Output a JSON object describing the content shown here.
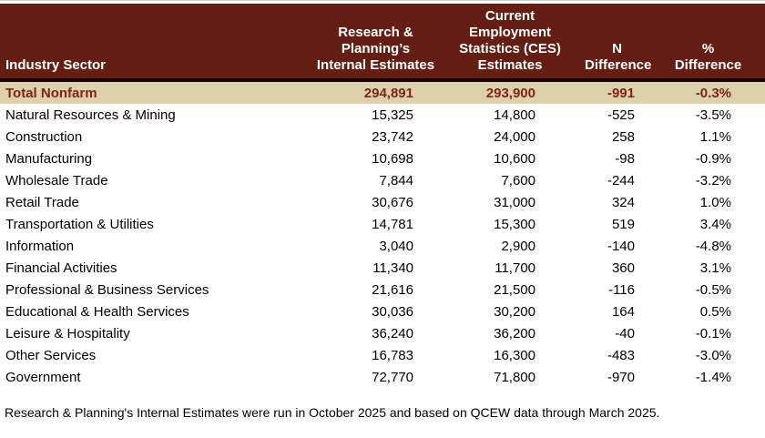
{
  "chart_data": {
    "type": "table",
    "columns": [
      "Industry Sector",
      "Research &\nPlanning’s\nInternal Estimates",
      "Current\nEmployment\nStatistics (CES)\nEstimates",
      "N\nDifference",
      "%\nDifference"
    ],
    "total_row": {
      "sector": "Total Nonfarm",
      "rp_estimate": "294,891",
      "ces_estimate": "293,900",
      "n_difference": "-991",
      "pct_difference": "-0.3%"
    },
    "rows": [
      {
        "sector": "Natural Resources & Mining",
        "rp_estimate": "15,325",
        "ces_estimate": "14,800",
        "n_difference": "-525",
        "pct_difference": "-3.5%"
      },
      {
        "sector": "Construction",
        "rp_estimate": "23,742",
        "ces_estimate": "24,000",
        "n_difference": "258",
        "pct_difference": "1.1%"
      },
      {
        "sector": "Manufacturing",
        "rp_estimate": "10,698",
        "ces_estimate": "10,600",
        "n_difference": "-98",
        "pct_difference": "-0.9%"
      },
      {
        "sector": "Wholesale Trade",
        "rp_estimate": "7,844",
        "ces_estimate": "7,600",
        "n_difference": "-244",
        "pct_difference": "-3.2%"
      },
      {
        "sector": "Retail Trade",
        "rp_estimate": "30,676",
        "ces_estimate": "31,000",
        "n_difference": "324",
        "pct_difference": "1.0%"
      },
      {
        "sector": "Transportation & Utilities",
        "rp_estimate": "14,781",
        "ces_estimate": "15,300",
        "n_difference": "519",
        "pct_difference": "3.4%"
      },
      {
        "sector": "Information",
        "rp_estimate": "3,040",
        "ces_estimate": "2,900",
        "n_difference": "-140",
        "pct_difference": "-4.8%"
      },
      {
        "sector": "Financial Activities",
        "rp_estimate": "11,340",
        "ces_estimate": "11,700",
        "n_difference": "360",
        "pct_difference": "3.1%"
      },
      {
        "sector": "Professional & Business Services",
        "rp_estimate": "21,616",
        "ces_estimate": "21,500",
        "n_difference": "-116",
        "pct_difference": "-0.5%"
      },
      {
        "sector": "Educational & Health Services",
        "rp_estimate": "30,036",
        "ces_estimate": "30,200",
        "n_difference": "164",
        "pct_difference": "0.5%"
      },
      {
        "sector": "Leisure & Hospitality",
        "rp_estimate": "36,240",
        "ces_estimate": "36,200",
        "n_difference": "-40",
        "pct_difference": "-0.1%"
      },
      {
        "sector": "Other Services",
        "rp_estimate": "16,783",
        "ces_estimate": "16,300",
        "n_difference": "-483",
        "pct_difference": "-3.0%"
      },
      {
        "sector": "Government",
        "rp_estimate": "72,770",
        "ces_estimate": "71,800",
        "n_difference": "-970",
        "pct_difference": "-1.4%"
      }
    ],
    "footnote": "Research & Planning's Internal Estimates were run in October 2025 and based on QCEW data through March 2025.",
    "layout": {
      "legend": "none",
      "grid": "off",
      "header_alignment": "bottom",
      "number_alignment": "right"
    }
  },
  "colors": {
    "header_bg": "#641e14",
    "header_text": "#ffffff",
    "divider": "#120400",
    "total_row_bg": "#ddd1ac",
    "total_row_text": "#7f2316",
    "body_text": "#000000",
    "background": "#ffffff"
  }
}
